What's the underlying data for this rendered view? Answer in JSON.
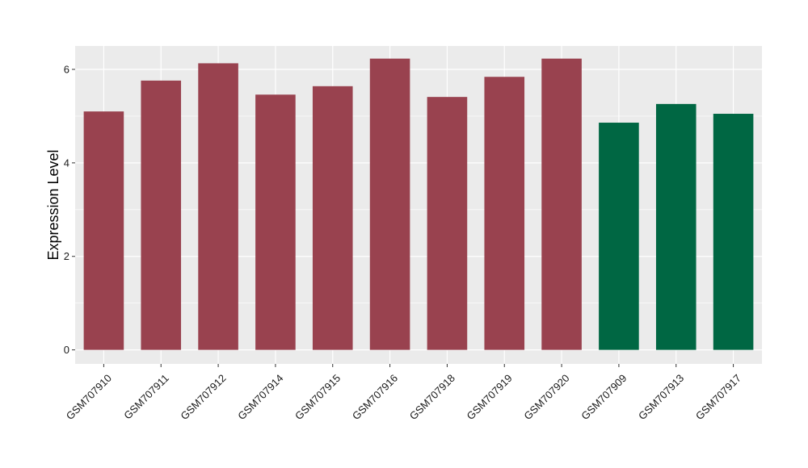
{
  "chart_data": {
    "type": "bar",
    "title": "",
    "xlabel": "",
    "ylabel": "Expression Level",
    "ylim": [
      -0.3,
      6.5
    ],
    "yticks": [
      0,
      2,
      4,
      6
    ],
    "grid": true,
    "categories": [
      "GSM707910",
      "GSM707911",
      "GSM707912",
      "GSM707914",
      "GSM707915",
      "GSM707916",
      "GSM707918",
      "GSM707919",
      "GSM707920",
      "GSM707909",
      "GSM707913",
      "GSM707917"
    ],
    "values": [
      5.1,
      5.76,
      6.13,
      5.46,
      5.64,
      6.23,
      5.41,
      5.84,
      6.23,
      4.86,
      5.26,
      5.05
    ],
    "groups": [
      "a",
      "a",
      "a",
      "a",
      "a",
      "a",
      "a",
      "a",
      "a",
      "b",
      "b",
      "b"
    ],
    "colors": {
      "a": "#99424f",
      "b": "#006743",
      "panel": "#ebebeb",
      "grid": "#ffffff"
    }
  }
}
